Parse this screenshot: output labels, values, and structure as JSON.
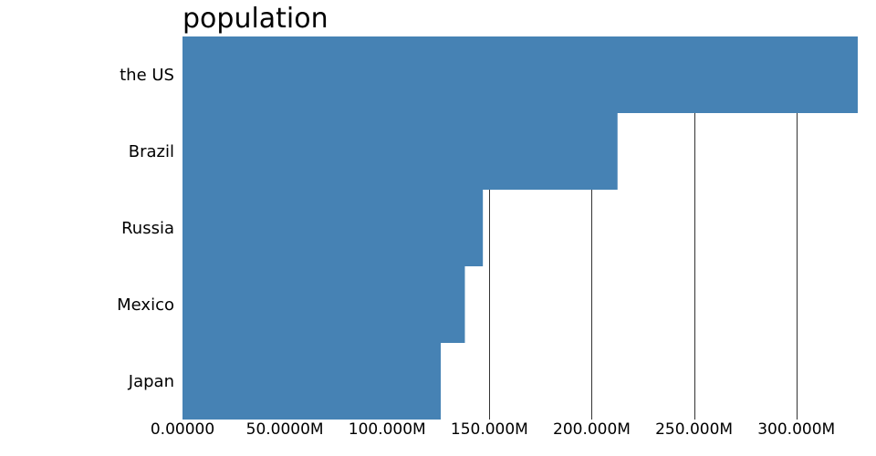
{
  "chart_data": {
    "type": "bar",
    "orientation": "horizontal",
    "title": "population",
    "xlabel": "",
    "ylabel": "",
    "categories": [
      "the US",
      "Brazil",
      "Russia",
      "Mexico",
      "Japan"
    ],
    "values": [
      331000000,
      212600000,
      146800000,
      138000000,
      126200000
    ],
    "xlim": [
      0,
      330000000
    ],
    "x_ticks": [
      0,
      50000000,
      100000000,
      150000000,
      200000000,
      250000000,
      300000000
    ],
    "x_tick_labels": [
      "0.00000",
      "50.0000M",
      "100.000M",
      "150.000M",
      "200.000M",
      "250.000M",
      "300.000M"
    ],
    "grid": "vertical lines",
    "legend": "none",
    "colors": {
      "bar": "#4682b4",
      "grid": "#333333"
    }
  }
}
